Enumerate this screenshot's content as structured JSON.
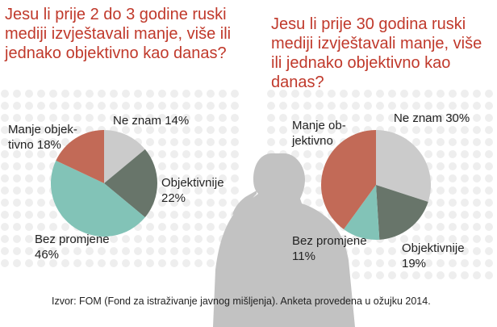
{
  "colors": {
    "title": "#c0392b",
    "backdrop_dots": "#eeeeee",
    "silhouette": "#c2c2c2",
    "ne_znam": "#cbcbcb",
    "objektivnije": "#68756a",
    "bez_promjene": "#82c3b7",
    "manje_objektivno": "#c26a57"
  },
  "chart_data": [
    {
      "type": "pie",
      "title": "Jesu li prije 2 do 3 godine ruski mediji izvještavali manje, više ili jednako objektivno kao danas?",
      "slices": [
        {
          "key": "ne_znam",
          "label_lines": [
            "Ne znam 14%"
          ],
          "value": 14
        },
        {
          "key": "objektivnije",
          "label_lines": [
            "Objektivnije",
            "22%"
          ],
          "value": 22
        },
        {
          "key": "bez_promjene",
          "label_lines": [
            "Bez promjene",
            "46%"
          ],
          "value": 46
        },
        {
          "key": "manje_objektivno",
          "label_lines": [
            "Manje objek-",
            "tivno 18%"
          ],
          "value": 18
        }
      ]
    },
    {
      "type": "pie",
      "title": "Jesu li prije 30 godina ruski mediji izvještavali manje, više ili jednako objektivno kao danas?",
      "slices": [
        {
          "key": "ne_znam",
          "label_lines": [
            "Ne znam 30%"
          ],
          "value": 30
        },
        {
          "key": "objektivnije",
          "label_lines": [
            "Objektivnije",
            "19%"
          ],
          "value": 19
        },
        {
          "key": "bez_promjene",
          "label_lines": [
            "Bez promjene",
            "11%"
          ],
          "value": 11
        },
        {
          "key": "manje_objektivno",
          "label_lines": [
            "Manje ob-",
            "jektivno"
          ],
          "value": 40
        }
      ]
    }
  ],
  "source": "Izvor: FOM (Fond za istraživanje javnog mišljenja). Anketa provedena u ožujku 2014."
}
